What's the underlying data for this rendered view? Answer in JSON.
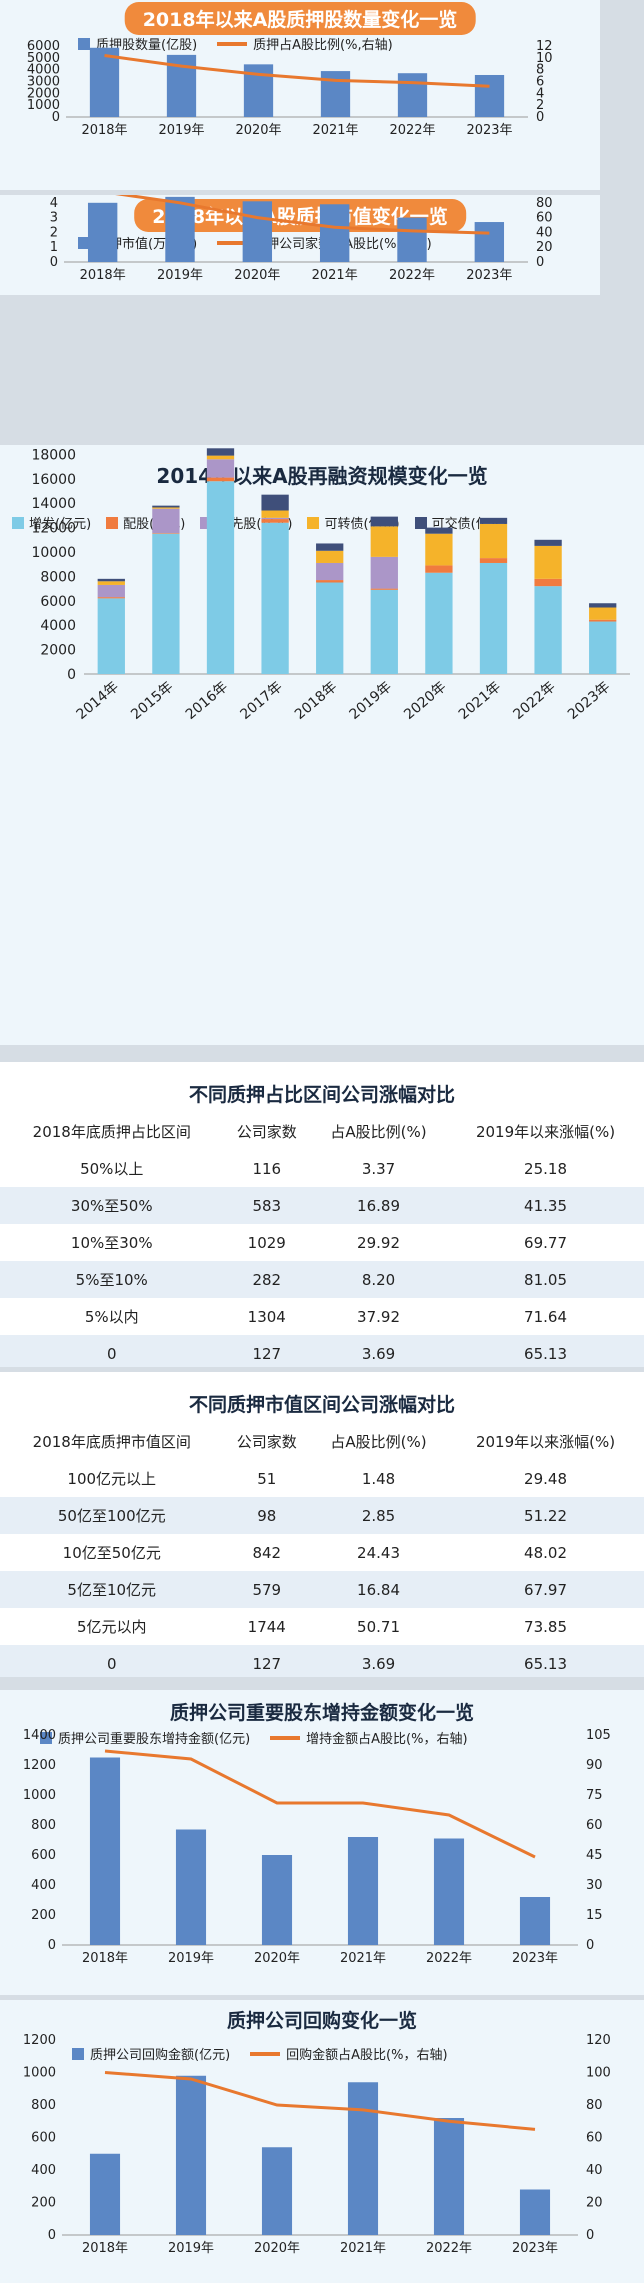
{
  "colors": {
    "bar_blue": "#5b87c5",
    "line_orange": "#e8782e",
    "pill_orange": "#f08a3c",
    "stack": [
      "#7ecbe6",
      "#f07b3f",
      "#ab96c8",
      "#f5b32a",
      "#3f4f7a"
    ]
  },
  "chart_data": [
    {
      "id": "pledged_shares",
      "type": "bar",
      "title": "2018年以来A股质押股数量变化一览",
      "categories": [
        "2018年",
        "2019年",
        "2020年",
        "2021年",
        "2022年",
        "2023年"
      ],
      "series": [
        {
          "name": "质押股数量(亿股)",
          "type": "bar",
          "axis": "left",
          "values": [
            5850,
            5250,
            4450,
            3880,
            3700,
            3550
          ]
        },
        {
          "name": "质押占A股比例(%,右轴)",
          "type": "line",
          "axis": "right",
          "values": [
            10.4,
            8.6,
            7.2,
            6.2,
            5.8,
            5.2
          ]
        }
      ],
      "ylim": [
        0,
        6000
      ],
      "yticks": [
        0,
        1000,
        2000,
        3000,
        4000,
        5000,
        6000
      ],
      "y2lim": [
        0,
        12
      ],
      "y2ticks": [
        0,
        2,
        4,
        6,
        8,
        10,
        12
      ],
      "legend_position": "top"
    },
    {
      "id": "pledged_value",
      "type": "bar",
      "title": "2018年以来A股质押市值变化一览",
      "categories": [
        "2018年",
        "2019年",
        "2020年",
        "2021年",
        "2022年",
        "2023年"
      ],
      "series": [
        {
          "name": "质押市值(万亿元)",
          "type": "bar",
          "axis": "left",
          "values": [
            4.0,
            4.4,
            4.1,
            3.9,
            3.0,
            2.7
          ]
        },
        {
          "name": "质押公司家数占A股比(%,右轴)",
          "type": "line",
          "axis": "right",
          "values": [
            95,
            80,
            60,
            47,
            42,
            39
          ]
        }
      ],
      "ylim": [
        0,
        5
      ],
      "yticks": [
        0,
        1,
        2,
        3,
        4,
        5
      ],
      "y2lim": [
        0,
        100
      ],
      "y2ticks": [
        0,
        20,
        40,
        60,
        80,
        100
      ],
      "legend_position": "top"
    },
    {
      "id": "refinancing",
      "type": "bar",
      "stacked": true,
      "title": "2014年以来A股再融资规模变化一览",
      "categories": [
        "2014年",
        "2015年",
        "2016年",
        "2017年",
        "2018年",
        "2019年",
        "2020年",
        "2021年",
        "2022年",
        "2023年"
      ],
      "series": [
        {
          "name": "增发(亿元)",
          "values": [
            6200,
            11500,
            15800,
            12400,
            7500,
            6900,
            8300,
            9100,
            7200,
            4300
          ]
        },
        {
          "name": "配股(亿元)",
          "values": [
            100,
            50,
            300,
            300,
            200,
            100,
            600,
            400,
            600,
            150
          ]
        },
        {
          "name": "优先股(亿元)",
          "values": [
            1000,
            2000,
            1500,
            100,
            1400,
            2600,
            0,
            0,
            0,
            0
          ]
        },
        {
          "name": "可转债(亿元)",
          "values": [
            300,
            100,
            300,
            600,
            1000,
            2500,
            2600,
            2800,
            2700,
            1000
          ]
        },
        {
          "name": "可交债(亿元)",
          "values": [
            200,
            150,
            600,
            1300,
            600,
            800,
            500,
            500,
            500,
            350
          ]
        }
      ],
      "ylim": [
        0,
        20000
      ],
      "yticks": [
        0,
        2000,
        4000,
        6000,
        8000,
        10000,
        12000,
        14000,
        16000,
        18000,
        20000
      ],
      "legend_position": "top"
    },
    {
      "id": "holding_increase",
      "type": "bar",
      "title": "质押公司重要股东增持金额变化一览",
      "categories": [
        "2018年",
        "2019年",
        "2020年",
        "2021年",
        "2022年",
        "2023年"
      ],
      "series": [
        {
          "name": "质押公司重要股东增持金额(亿元)",
          "type": "bar",
          "axis": "left",
          "values": [
            1250,
            770,
            600,
            720,
            710,
            320
          ]
        },
        {
          "name": "增持金额占A股比(%，右轴)",
          "type": "line",
          "axis": "right",
          "values": [
            97,
            93,
            71,
            71,
            65,
            44
          ]
        }
      ],
      "ylim": [
        0,
        1400
      ],
      "yticks": [
        0,
        200,
        400,
        600,
        800,
        1000,
        1200,
        1400
      ],
      "y2lim": [
        0,
        105
      ],
      "y2ticks": [
        0,
        15,
        30,
        45,
        60,
        75,
        90,
        105
      ],
      "legend_position": "top"
    },
    {
      "id": "buyback",
      "type": "bar",
      "title": "质押公司回购变化一览",
      "categories": [
        "2018年",
        "2019年",
        "2020年",
        "2021年",
        "2022年",
        "2023年"
      ],
      "series": [
        {
          "name": "质押公司回购金额(亿元)",
          "type": "bar",
          "axis": "left",
          "values": [
            500,
            980,
            540,
            940,
            720,
            280
          ]
        },
        {
          "name": "回购金额占A股比(%，右轴)",
          "type": "line",
          "axis": "right",
          "values": [
            100,
            96,
            80,
            77,
            70,
            65
          ]
        }
      ],
      "ylim": [
        0,
        1200
      ],
      "yticks": [
        0,
        200,
        400,
        600,
        800,
        1000,
        1200
      ],
      "y2lim": [
        0,
        120
      ],
      "y2ticks": [
        0,
        20,
        40,
        60,
        80,
        100,
        120
      ],
      "legend_position": "top"
    }
  ],
  "tables": {
    "ratio": {
      "title": "不同质押占比区间公司涨幅对比",
      "headers": [
        "2018年底质押占比区间",
        "公司家数",
        "占A股比例(%)",
        "2019年以来涨幅(%)"
      ],
      "rows": [
        [
          "50%以上",
          "116",
          "3.37",
          "25.18"
        ],
        [
          "30%至50%",
          "583",
          "16.89",
          "41.35"
        ],
        [
          "10%至30%",
          "1029",
          "29.92",
          "69.77"
        ],
        [
          "5%至10%",
          "282",
          "8.20",
          "81.05"
        ],
        [
          "5%以内",
          "1304",
          "37.92",
          "71.64"
        ],
        [
          "0",
          "127",
          "3.69",
          "65.13"
        ]
      ]
    },
    "value": {
      "title": "不同质押市值区间公司涨幅对比",
      "headers": [
        "2018年底质押市值区间",
        "公司家数",
        "占A股比例(%)",
        "2019年以来涨幅(%)"
      ],
      "rows": [
        [
          "100亿元以上",
          "51",
          "1.48",
          "29.48"
        ],
        [
          "50亿至100亿元",
          "98",
          "2.85",
          "51.22"
        ],
        [
          "10亿至50亿元",
          "842",
          "24.43",
          "48.02"
        ],
        [
          "5亿至10亿元",
          "579",
          "16.84",
          "67.97"
        ],
        [
          "5亿元以内",
          "1744",
          "50.71",
          "73.85"
        ],
        [
          "0",
          "127",
          "3.69",
          "65.13"
        ]
      ]
    }
  }
}
